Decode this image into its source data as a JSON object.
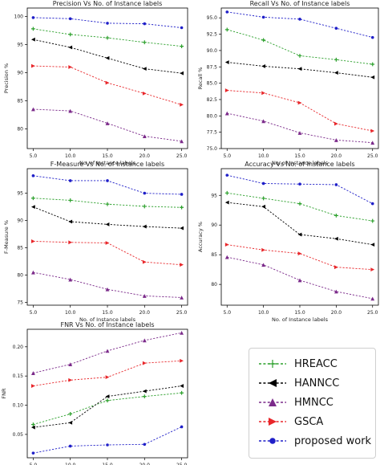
{
  "chart_data": [
    {
      "type": "line",
      "title": "Precision Vs No. of Instance labels",
      "xlabel": "No. of Instance labels",
      "ylabel": "Precision %",
      "x": [
        5.0,
        10.0,
        15.0,
        20.0,
        25.0
      ],
      "xticks": [
        "5.0",
        "10.0",
        "15.0",
        "20.0",
        "25.0"
      ],
      "ylim": [
        76.5,
        101.5
      ],
      "yticks": [
        "80",
        "85",
        "90",
        "95",
        "100"
      ],
      "series": [
        {
          "name": "HREACC",
          "values": [
            97.8,
            96.8,
            96.2,
            95.4,
            94.7
          ]
        },
        {
          "name": "HANNCC",
          "values": [
            95.9,
            94.5,
            92.6,
            90.7,
            89.9
          ]
        },
        {
          "name": "HMNCC",
          "values": [
            83.5,
            83.2,
            81.0,
            78.7,
            77.8
          ]
        },
        {
          "name": "GSCA",
          "values": [
            91.2,
            91.0,
            88.2,
            86.3,
            84.3
          ]
        },
        {
          "name": "proposed work",
          "values": [
            99.8,
            99.6,
            98.8,
            98.7,
            98.0
          ]
        }
      ]
    },
    {
      "type": "line",
      "title": "Recall Vs No. of Instance labels",
      "xlabel": "No. of Instance labels",
      "ylabel": "Recall %",
      "x": [
        5.0,
        10.0,
        15.0,
        20.0,
        25.0
      ],
      "xticks": [
        "5.0",
        "10.0",
        "15.0",
        "20.0",
        "25.0"
      ],
      "ylim": [
        75.0,
        96.5
      ],
      "yticks": [
        "75.0",
        "77.5",
        "80.0",
        "82.5",
        "85.0",
        "87.5",
        "90.0",
        "92.5",
        "95.0"
      ],
      "series": [
        {
          "name": "HREACC",
          "values": [
            93.2,
            91.6,
            89.2,
            88.6,
            87.9
          ]
        },
        {
          "name": "HANNCC",
          "values": [
            88.2,
            87.6,
            87.2,
            86.6,
            85.9
          ]
        },
        {
          "name": "HMNCC",
          "values": [
            80.4,
            79.2,
            77.4,
            76.3,
            75.9
          ]
        },
        {
          "name": "GSCA",
          "values": [
            83.9,
            83.5,
            82.0,
            78.8,
            77.7
          ]
        },
        {
          "name": "proposed work",
          "values": [
            95.9,
            95.1,
            94.8,
            93.4,
            92.0
          ]
        }
      ]
    },
    {
      "type": "line",
      "title": "F-Measure Vs No. of Instance labels",
      "xlabel": "No. of Instance labels",
      "ylabel": "F-Measure %",
      "x": [
        5.0,
        10.0,
        15.0,
        20.0,
        25.0
      ],
      "xticks": [
        "5.0",
        "10.0",
        "15.0",
        "20.0",
        "25.0"
      ],
      "ylim": [
        74.5,
        99.5
      ],
      "yticks": [
        "75",
        "80",
        "85",
        "90",
        "95"
      ],
      "series": [
        {
          "name": "HREACC",
          "values": [
            94.1,
            93.7,
            93.0,
            92.6,
            92.4
          ]
        },
        {
          "name": "HANNCC",
          "values": [
            92.5,
            89.8,
            89.3,
            88.9,
            88.6
          ]
        },
        {
          "name": "HMNCC",
          "values": [
            80.5,
            79.2,
            77.4,
            76.2,
            75.9
          ]
        },
        {
          "name": "GSCA",
          "values": [
            86.2,
            86.0,
            85.9,
            82.4,
            81.9
          ]
        },
        {
          "name": "proposed work",
          "values": [
            98.2,
            97.3,
            97.3,
            95.0,
            94.8
          ]
        }
      ]
    },
    {
      "type": "line",
      "title": "Accuracy Vs No. of Instance labels",
      "xlabel": "No. of Instance labels",
      "ylabel": "Accuracy %",
      "x": [
        5.0,
        10.0,
        15.0,
        20.0,
        25.0
      ],
      "xticks": [
        "5.0",
        "10.0",
        "15.0",
        "20.0",
        "25.0"
      ],
      "ylim": [
        76.5,
        99.5
      ],
      "yticks": [
        "80",
        "85",
        "90",
        "95"
      ],
      "series": [
        {
          "name": "HREACC",
          "values": [
            95.4,
            94.5,
            93.6,
            91.6,
            90.7
          ]
        },
        {
          "name": "HANNCC",
          "values": [
            93.8,
            93.1,
            88.4,
            87.7,
            86.7
          ]
        },
        {
          "name": "HMNCC",
          "values": [
            84.6,
            83.3,
            80.7,
            78.8,
            77.6
          ]
        },
        {
          "name": "GSCA",
          "values": [
            86.7,
            85.8,
            85.2,
            82.9,
            82.5
          ]
        },
        {
          "name": "proposed work",
          "values": [
            98.4,
            97.0,
            96.9,
            96.8,
            93.6
          ]
        }
      ]
    },
    {
      "type": "line",
      "title": "FNR Vs No. of Instance labels",
      "xlabel": "No. of Instance labels",
      "ylabel": "FNR",
      "x": [
        5.0,
        10.0,
        15.0,
        20.0,
        25.0
      ],
      "xticks": [
        "5.0",
        "10.0",
        "15.0",
        "20.0",
        "25.0"
      ],
      "ylim": [
        0.01,
        0.23
      ],
      "yticks": [
        "0.05",
        "0.10",
        "0.15",
        "0.20"
      ],
      "series": [
        {
          "name": "HREACC",
          "values": [
            0.067,
            0.085,
            0.108,
            0.115,
            0.121
          ]
        },
        {
          "name": "HANNCC",
          "values": [
            0.062,
            0.07,
            0.115,
            0.124,
            0.133
          ]
        },
        {
          "name": "HMNCC",
          "values": [
            0.155,
            0.17,
            0.193,
            0.211,
            0.224
          ]
        },
        {
          "name": "GSCA",
          "values": [
            0.133,
            0.143,
            0.148,
            0.172,
            0.176
          ]
        },
        {
          "name": "proposed work",
          "values": [
            0.018,
            0.03,
            0.032,
            0.033,
            0.063
          ]
        }
      ]
    }
  ],
  "legend": {
    "placement": "bottom-right",
    "entries": [
      {
        "label": "HREACC",
        "color": "#2ca02c",
        "marker": "plus"
      },
      {
        "label": "HANNCC",
        "color": "#000000",
        "marker": "triangle-left"
      },
      {
        "label": "HMNCC",
        "color": "#7b2a8a",
        "marker": "triangle-up"
      },
      {
        "label": "GSCA",
        "color": "#e8262a",
        "marker": "triangle-right"
      },
      {
        "label": "proposed work",
        "color": "#1f1fc8",
        "marker": "circle"
      }
    ]
  },
  "series_styles": {
    "HREACC": {
      "color": "#2ca02c",
      "marker": "plus"
    },
    "HANNCC": {
      "color": "#000000",
      "marker": "triangle-left"
    },
    "HMNCC": {
      "color": "#7b2a8a",
      "marker": "triangle-up"
    },
    "GSCA": {
      "color": "#e8262a",
      "marker": "triangle-right"
    },
    "proposed work": {
      "color": "#1f1fc8",
      "marker": "circle"
    }
  }
}
